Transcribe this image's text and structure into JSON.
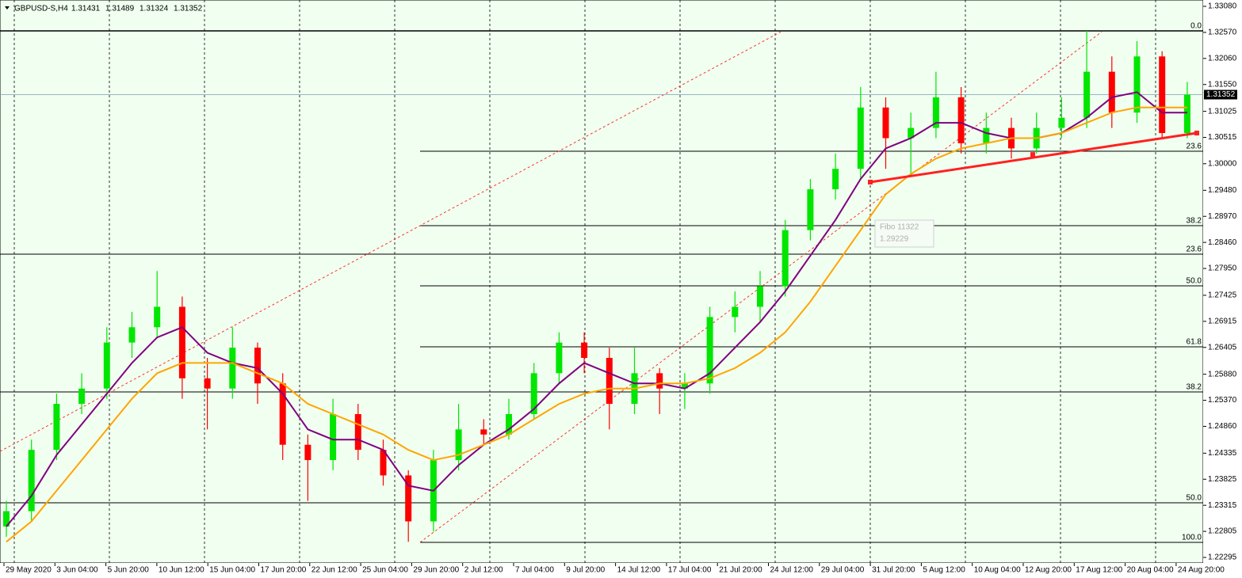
{
  "chart_data": {
    "type": "candlestick",
    "title": "GBPUSD-S,H4",
    "header_prices": [
      "1.31431",
      "1.31489",
      "1.31324",
      "1.31352"
    ],
    "background": "#f0fff0",
    "up_color": "#00e600",
    "down_color": "#ff0000",
    "x_labels": [
      "29 May 2020",
      "3 Jun 04:00",
      "5 Jun 20:00",
      "10 Jun 12:00",
      "15 Jun 04:00",
      "17 Jun 20:00",
      "22 Jun 12:00",
      "25 Jun 04:00",
      "29 Jun 20:00",
      "2 Jul 12:00",
      "7 Jul 04:00",
      "9 Jul 20:00",
      "14 Jul 12:00",
      "17 Jul 04:00",
      "21 Jul 20:00",
      "24 Jul 12:00",
      "29 Jul 04:00",
      "31 Jul 20:00",
      "5 Aug 12:00",
      "10 Aug 04:00",
      "12 Aug 20:00",
      "17 Aug 12:00",
      "20 Aug 04:00",
      "24 Aug 20:00"
    ],
    "open": [
      1.229,
      1.232,
      1.244,
      1.253,
      1.256,
      1.265,
      1.268,
      1.272,
      1.258,
      1.256,
      1.264,
      1.257,
      1.245,
      1.242,
      1.251,
      1.244,
      1.239,
      1.23,
      1.242,
      1.248,
      1.247,
      1.251,
      1.259,
      1.265,
      1.262,
      1.253,
      1.259,
      1.256,
      1.257,
      1.27,
      1.272,
      1.276,
      1.287,
      1.295,
      1.299,
      1.311,
      1.305,
      1.307,
      1.313,
      1.304,
      1.307,
      1.303,
      1.307,
      1.309,
      1.318,
      1.31,
      1.321,
      1.306
    ],
    "high": [
      1.234,
      1.246,
      1.255,
      1.259,
      1.268,
      1.271,
      1.279,
      1.274,
      1.262,
      1.268,
      1.265,
      1.259,
      1.247,
      1.254,
      1.253,
      1.246,
      1.24,
      1.244,
      1.253,
      1.25,
      1.254,
      1.261,
      1.267,
      1.267,
      1.264,
      1.264,
      1.26,
      1.259,
      1.272,
      1.275,
      1.279,
      1.289,
      1.297,
      1.302,
      1.315,
      1.313,
      1.31,
      1.318,
      1.315,
      1.31,
      1.309,
      1.31,
      1.313,
      1.326,
      1.321,
      1.324,
      1.322,
      1.316
    ],
    "low": [
      1.227,
      1.23,
      1.242,
      1.251,
      1.254,
      1.262,
      1.266,
      1.254,
      1.248,
      1.254,
      1.253,
      1.242,
      1.234,
      1.24,
      1.242,
      1.237,
      1.226,
      1.228,
      1.24,
      1.245,
      1.246,
      1.25,
      1.257,
      1.259,
      1.248,
      1.251,
      1.251,
      1.252,
      1.255,
      1.267,
      1.269,
      1.274,
      1.285,
      1.293,
      1.297,
      1.299,
      1.298,
      1.305,
      1.302,
      1.302,
      1.301,
      1.302,
      1.305,
      1.307,
      1.307,
      1.308,
      1.305,
      1.305
    ],
    "close": [
      1.232,
      1.244,
      1.253,
      1.256,
      1.265,
      1.268,
      1.272,
      1.258,
      1.256,
      1.264,
      1.257,
      1.245,
      1.242,
      1.251,
      1.244,
      1.239,
      1.23,
      1.242,
      1.248,
      1.247,
      1.251,
      1.259,
      1.265,
      1.262,
      1.253,
      1.259,
      1.256,
      1.257,
      1.27,
      1.272,
      1.276,
      1.287,
      1.295,
      1.299,
      1.311,
      1.305,
      1.307,
      1.313,
      1.304,
      1.307,
      1.303,
      1.307,
      1.309,
      1.318,
      1.31,
      1.321,
      1.306,
      1.3135
    ],
    "series": [
      {
        "color": "#800080",
        "values": [
          1.229,
          1.235,
          1.243,
          1.249,
          1.255,
          1.261,
          1.266,
          1.268,
          1.263,
          1.261,
          1.26,
          1.255,
          1.248,
          1.246,
          1.246,
          1.244,
          1.237,
          1.236,
          1.241,
          1.245,
          1.248,
          1.252,
          1.257,
          1.261,
          1.259,
          1.257,
          1.257,
          1.256,
          1.259,
          1.264,
          1.269,
          1.275,
          1.282,
          1.289,
          1.297,
          1.303,
          1.305,
          1.308,
          1.308,
          1.306,
          1.305,
          1.305,
          1.306,
          1.309,
          1.313,
          1.314,
          1.31,
          1.31
        ]
      },
      {
        "color": "#ffa500",
        "values": [
          1.226,
          1.23,
          1.236,
          1.242,
          1.248,
          1.254,
          1.259,
          1.261,
          1.261,
          1.261,
          1.259,
          1.257,
          1.253,
          1.251,
          1.249,
          1.247,
          1.244,
          1.242,
          1.243,
          1.245,
          1.247,
          1.25,
          1.253,
          1.255,
          1.256,
          1.256,
          1.257,
          1.257,
          1.258,
          1.26,
          1.263,
          1.267,
          1.273,
          1.28,
          1.287,
          1.294,
          1.298,
          1.301,
          1.303,
          1.304,
          1.305,
          1.305,
          1.306,
          1.308,
          1.31,
          1.311,
          1.311,
          1.311
        ]
      }
    ],
    "ylim": [
      1.22295,
      1.3308
    ],
    "yticks": [
      {
        "value": 1.3308,
        "label": "1.33080"
      },
      {
        "value": 1.3257,
        "label": "1.32570"
      },
      {
        "value": 1.3206,
        "label": "1.32060"
      },
      {
        "value": 1.3155,
        "label": "1.31550"
      },
      {
        "value": 1.31025,
        "label": "1.31025"
      },
      {
        "value": 1.30515,
        "label": "1.30515"
      },
      {
        "value": 1.3,
        "label": "1.30000"
      },
      {
        "value": 1.2948,
        "label": "1.29480"
      },
      {
        "value": 1.2897,
        "label": "1.28970"
      },
      {
        "value": 1.2846,
        "label": "1.28460"
      },
      {
        "value": 1.2795,
        "label": "1.27950"
      },
      {
        "value": 1.27425,
        "label": "1.27425"
      },
      {
        "value": 1.26915,
        "label": "1.26915"
      },
      {
        "value": 1.26405,
        "label": "1.26405"
      },
      {
        "value": 1.2588,
        "label": "1.25880"
      },
      {
        "value": 1.2537,
        "label": "1.25370"
      },
      {
        "value": 1.2486,
        "label": "1.24860"
      },
      {
        "value": 1.24335,
        "label": "1.24335"
      },
      {
        "value": 1.23825,
        "label": "1.23825"
      },
      {
        "value": 1.23315,
        "label": "1.23315"
      },
      {
        "value": 1.22805,
        "label": "1.22805"
      },
      {
        "value": 1.22295,
        "label": "1.22295"
      }
    ],
    "current_price": {
      "value": 1.31352,
      "label": "1.31352"
    },
    "fibo_right": [
      {
        "label": "0.0",
        "price": 1.326
      },
      {
        "label": "23.6",
        "price": 1.30244
      },
      {
        "label": "38.2",
        "price": 1.28787
      },
      {
        "label": "50.0",
        "price": 1.2761
      },
      {
        "label": "61.8",
        "price": 1.26416
      },
      {
        "label": "100.0",
        "price": 1.22589
      }
    ],
    "fibo_full": [
      {
        "label": "23.6",
        "price": 1.2823
      },
      {
        "label": "38.2",
        "price": 1.25533
      },
      {
        "label": "50.0",
        "price": 1.23364
      }
    ],
    "fibo_tooltip": [
      "Fibo 11322",
      "1.29229"
    ],
    "trendline": {
      "color": "#ff2020",
      "start_price": 1.2964,
      "mid_price": 1.3018,
      "end_price": 1.306
    },
    "channel": {
      "color": "#ff2020",
      "lines": [
        [
          1.2437,
          1.3258
        ],
        [
          1.2259,
          1.3258
        ]
      ]
    }
  }
}
